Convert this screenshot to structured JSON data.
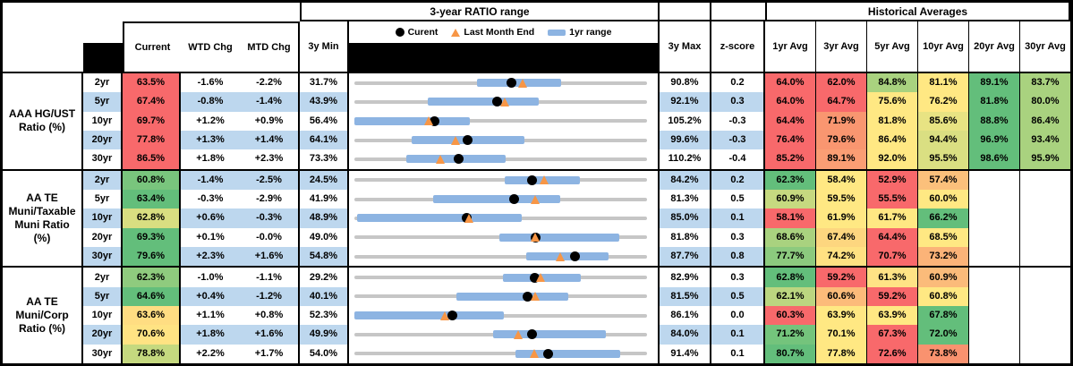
{
  "header": {
    "chart_section_title": "3-year RATIO range",
    "historical_section_title": "Historical Averages",
    "col_current": "Current",
    "col_wtd": "WTD Chg",
    "col_mtd": "MTD Chg",
    "col_3y_min": "3y Min",
    "col_3y_max": "3y Max",
    "col_zscore": "z-score",
    "avg_cols": [
      "1yr Avg",
      "3yr Avg",
      "5yr Avg",
      "10yr Avg",
      "20yr Avg",
      "30yr Avg"
    ],
    "legend": {
      "current": "Curent",
      "last_month": "Last Month End",
      "range": "1yr range"
    }
  },
  "colors": {
    "stripe_blue": "#BDD7EE",
    "bar_blue": "#8DB4E2",
    "track_gray": "#C6C6C6",
    "triangle_orange": "#F79646",
    "dot_black": "#000000",
    "heat_red": "#F8696B",
    "heat_yellow": "#FFE883",
    "heat_green": "#63BE7B"
  },
  "groups": [
    {
      "label": "AAA HG/UST\nRatio (%)",
      "rows": [
        {
          "tenor": "2yr",
          "current": "63.5%",
          "current_color": "#F8696B",
          "wtd": "-1.6%",
          "mtd": "-2.2%",
          "min": "31.7%",
          "max": "90.8%",
          "zscore": "0.2",
          "avgs": [
            {
              "v": "64.0%",
              "c": "#F8696B"
            },
            {
              "v": "62.0%",
              "c": "#F8696B"
            },
            {
              "v": "84.8%",
              "c": "#A9D27F"
            },
            {
              "v": "81.1%",
              "c": "#FFE883"
            },
            {
              "v": "89.1%",
              "c": "#63BE7B"
            },
            {
              "v": "83.7%",
              "c": "#A9D27F"
            }
          ]
        },
        {
          "tenor": "5yr",
          "current": "67.4%",
          "current_color": "#F8696B",
          "wtd": "-0.8%",
          "mtd": "-1.4%",
          "min": "43.9%",
          "max": "92.1%",
          "zscore": "0.3",
          "avgs": [
            {
              "v": "64.0%",
              "c": "#F8696B"
            },
            {
              "v": "64.7%",
              "c": "#F8696B"
            },
            {
              "v": "75.6%",
              "c": "#FFE883"
            },
            {
              "v": "76.2%",
              "c": "#FFE883"
            },
            {
              "v": "81.8%",
              "c": "#63BE7B"
            },
            {
              "v": "80.0%",
              "c": "#A9D27F"
            }
          ]
        },
        {
          "tenor": "10yr",
          "current": "69.7%",
          "current_color": "#F8696B",
          "wtd": "+1.2%",
          "mtd": "+0.9%",
          "min": "56.4%",
          "max": "105.2%",
          "zscore": "-0.3",
          "avgs": [
            {
              "v": "64.4%",
              "c": "#F8696B"
            },
            {
              "v": "71.9%",
              "c": "#F99670"
            },
            {
              "v": "81.8%",
              "c": "#FFE883"
            },
            {
              "v": "85.6%",
              "c": "#E8E383"
            },
            {
              "v": "88.8%",
              "c": "#63BE7B"
            },
            {
              "v": "86.4%",
              "c": "#A9D27F"
            }
          ]
        },
        {
          "tenor": "20yr",
          "current": "77.8%",
          "current_color": "#F8696B",
          "wtd": "+1.3%",
          "mtd": "+1.4%",
          "min": "64.1%",
          "max": "99.6%",
          "zscore": "-0.3",
          "avgs": [
            {
              "v": "76.4%",
              "c": "#F8696B"
            },
            {
              "v": "79.6%",
              "c": "#F99670"
            },
            {
              "v": "86.4%",
              "c": "#FFE883"
            },
            {
              "v": "94.4%",
              "c": "#DADF82"
            },
            {
              "v": "96.9%",
              "c": "#63BE7B"
            },
            {
              "v": "93.4%",
              "c": "#A9D27F"
            }
          ]
        },
        {
          "tenor": "30yr",
          "current": "86.5%",
          "current_color": "#F8696B",
          "wtd": "+1.8%",
          "mtd": "+2.3%",
          "min": "73.3%",
          "max": "110.2%",
          "zscore": "-0.4",
          "avgs": [
            {
              "v": "85.2%",
              "c": "#F8696B"
            },
            {
              "v": "89.1%",
              "c": "#FA9E74"
            },
            {
              "v": "92.0%",
              "c": "#FFE883"
            },
            {
              "v": "95.5%",
              "c": "#DADF82"
            },
            {
              "v": "98.6%",
              "c": "#63BE7B"
            },
            {
              "v": "95.9%",
              "c": "#A9D27F"
            }
          ]
        }
      ]
    },
    {
      "label": "AA TE\nMuni/Taxable\nMuni Ratio\n(%)",
      "rows": [
        {
          "tenor": "2yr",
          "current": "60.8%",
          "current_color": "#79C57D",
          "wtd": "-1.4%",
          "mtd": "-2.5%",
          "min": "24.5%",
          "max": "84.2%",
          "zscore": "0.2",
          "avgs": [
            {
              "v": "62.3%",
              "c": "#63BE7B"
            },
            {
              "v": "58.4%",
              "c": "#FFE883"
            },
            {
              "v": "52.9%",
              "c": "#F8696B"
            },
            {
              "v": "57.4%",
              "c": "#FBC07B"
            },
            {
              "v": "",
              "c": ""
            },
            {
              "v": "",
              "c": ""
            }
          ]
        },
        {
          "tenor": "5yr",
          "current": "63.4%",
          "current_color": "#63BE7B",
          "wtd": "-0.3%",
          "mtd": "-2.9%",
          "min": "41.9%",
          "max": "81.3%",
          "zscore": "0.5",
          "avgs": [
            {
              "v": "60.9%",
              "c": "#C6D980"
            },
            {
              "v": "59.5%",
              "c": "#FFE883"
            },
            {
              "v": "55.5%",
              "c": "#F8696B"
            },
            {
              "v": "60.0%",
              "c": "#FFE883"
            },
            {
              "v": "",
              "c": ""
            },
            {
              "v": "",
              "c": ""
            }
          ]
        },
        {
          "tenor": "10yr",
          "current": "62.8%",
          "current_color": "#D9DE81",
          "wtd": "+0.6%",
          "mtd": "-0.3%",
          "min": "48.9%",
          "max": "85.0%",
          "zscore": "0.1",
          "avgs": [
            {
              "v": "58.1%",
              "c": "#F8696B"
            },
            {
              "v": "61.9%",
              "c": "#FFE883"
            },
            {
              "v": "61.7%",
              "c": "#FFE883"
            },
            {
              "v": "66.2%",
              "c": "#63BE7B"
            },
            {
              "v": "",
              "c": ""
            },
            {
              "v": "",
              "c": ""
            }
          ]
        },
        {
          "tenor": "20yr",
          "current": "69.3%",
          "current_color": "#63BE7B",
          "wtd": "+0.1%",
          "mtd": "-0.0%",
          "min": "49.0%",
          "max": "81.8%",
          "zscore": "0.3",
          "avgs": [
            {
              "v": "68.6%",
              "c": "#A9D27F"
            },
            {
              "v": "67.4%",
              "c": "#FDD67F"
            },
            {
              "v": "64.4%",
              "c": "#F8696B"
            },
            {
              "v": "68.5%",
              "c": "#FFE883"
            },
            {
              "v": "",
              "c": ""
            },
            {
              "v": "",
              "c": ""
            }
          ]
        },
        {
          "tenor": "30yr",
          "current": "79.6%",
          "current_color": "#63BE7B",
          "wtd": "+2.3%",
          "mtd": "+1.6%",
          "min": "54.8%",
          "max": "87.7%",
          "zscore": "0.8",
          "avgs": [
            {
              "v": "77.7%",
              "c": "#8CCA7E"
            },
            {
              "v": "74.2%",
              "c": "#FFE182"
            },
            {
              "v": "70.7%",
              "c": "#F8696B"
            },
            {
              "v": "73.2%",
              "c": "#FBB378"
            },
            {
              "v": "",
              "c": ""
            },
            {
              "v": "",
              "c": ""
            }
          ]
        }
      ]
    },
    {
      "label": "AA TE\nMuni/Corp\nRatio (%)",
      "rows": [
        {
          "tenor": "2yr",
          "current": "62.3%",
          "current_color": "#8FCB7E",
          "wtd": "-1.0%",
          "mtd": "-1.1%",
          "min": "29.2%",
          "max": "82.9%",
          "zscore": "0.3",
          "avgs": [
            {
              "v": "62.8%",
              "c": "#63BE7B"
            },
            {
              "v": "59.2%",
              "c": "#F8696B"
            },
            {
              "v": "61.3%",
              "c": "#FFE385"
            },
            {
              "v": "60.9%",
              "c": "#FBBB7A"
            },
            {
              "v": "",
              "c": ""
            },
            {
              "v": "",
              "c": ""
            }
          ]
        },
        {
          "tenor": "5yr",
          "current": "64.6%",
          "current_color": "#63BE7B",
          "wtd": "+0.4%",
          "mtd": "-1.2%",
          "min": "40.1%",
          "max": "81.5%",
          "zscore": "0.5",
          "avgs": [
            {
              "v": "62.1%",
              "c": "#BBD680"
            },
            {
              "v": "60.6%",
              "c": "#FCBB7A"
            },
            {
              "v": "59.2%",
              "c": "#F8696B"
            },
            {
              "v": "60.8%",
              "c": "#FFE883"
            },
            {
              "v": "",
              "c": ""
            },
            {
              "v": "",
              "c": ""
            }
          ]
        },
        {
          "tenor": "10yr",
          "current": "63.6%",
          "current_color": "#FFDD82",
          "wtd": "+1.1%",
          "mtd": "+0.8%",
          "min": "52.3%",
          "max": "86.1%",
          "zscore": "0.0",
          "avgs": [
            {
              "v": "60.3%",
              "c": "#F8696B"
            },
            {
              "v": "63.9%",
              "c": "#FFE883"
            },
            {
              "v": "63.9%",
              "c": "#FFE883"
            },
            {
              "v": "67.8%",
              "c": "#63BE7B"
            },
            {
              "v": "",
              "c": ""
            },
            {
              "v": "",
              "c": ""
            }
          ]
        },
        {
          "tenor": "20yr",
          "current": "70.6%",
          "current_color": "#FFE383",
          "wtd": "+1.8%",
          "mtd": "+1.6%",
          "min": "49.9%",
          "max": "84.0%",
          "zscore": "0.1",
          "avgs": [
            {
              "v": "71.2%",
              "c": "#74C47C"
            },
            {
              "v": "70.1%",
              "c": "#FFE883"
            },
            {
              "v": "67.3%",
              "c": "#F8696B"
            },
            {
              "v": "72.0%",
              "c": "#63BE7B"
            },
            {
              "v": "",
              "c": ""
            },
            {
              "v": "",
              "c": ""
            }
          ]
        },
        {
          "tenor": "30yr",
          "current": "78.8%",
          "current_color": "#C5D97F",
          "wtd": "+2.2%",
          "mtd": "+1.7%",
          "min": "54.0%",
          "max": "91.4%",
          "zscore": "0.1",
          "avgs": [
            {
              "v": "80.7%",
              "c": "#63BE7B"
            },
            {
              "v": "77.8%",
              "c": "#FFE883"
            },
            {
              "v": "72.6%",
              "c": "#F8696B"
            },
            {
              "v": "73.8%",
              "c": "#F9926F"
            },
            {
              "v": "",
              "c": ""
            },
            {
              "v": "",
              "c": ""
            }
          ]
        }
      ]
    }
  ],
  "chart_data": {
    "type": "range-dot-plot",
    "title": "3-year RATIO range",
    "x_unit": "percent ratio",
    "legend": [
      "Current",
      "Last Month End",
      "1yr range"
    ],
    "groups": [
      {
        "name": "AAA HG/UST Ratio (%)",
        "rows": [
          {
            "label": "2yr",
            "min_3y": 31.7,
            "max_3y": 90.8,
            "current": 63.5,
            "last_month_end": 65.7,
            "range_1yr": [
              56.4,
              73.5
            ]
          },
          {
            "label": "5yr",
            "min_3y": 43.9,
            "max_3y": 92.1,
            "current": 67.4,
            "last_month_end": 68.8,
            "range_1yr": [
              56.0,
              74.3
            ]
          },
          {
            "label": "10yr",
            "min_3y": 56.4,
            "max_3y": 105.2,
            "current": 69.7,
            "last_month_end": 68.8,
            "range_1yr": [
              56.4,
              75.6
            ]
          },
          {
            "label": "20yr",
            "min_3y": 64.1,
            "max_3y": 99.6,
            "current": 77.8,
            "last_month_end": 76.4,
            "range_1yr": [
              71.1,
              84.7
            ]
          },
          {
            "label": "30yr",
            "min_3y": 73.3,
            "max_3y": 110.2,
            "current": 86.5,
            "last_month_end": 84.2,
            "range_1yr": [
              79.9,
              92.4
            ]
          }
        ]
      },
      {
        "name": "AA TE Muni/Taxable Muni Ratio (%)",
        "rows": [
          {
            "label": "2yr",
            "min_3y": 24.5,
            "max_3y": 84.2,
            "current": 60.8,
            "last_month_end": 63.3,
            "range_1yr": [
              55.2,
              70.6
            ]
          },
          {
            "label": "5yr",
            "min_3y": 41.9,
            "max_3y": 81.3,
            "current": 63.4,
            "last_month_end": 66.3,
            "range_1yr": [
              52.5,
              69.6
            ]
          },
          {
            "label": "10yr",
            "min_3y": 48.9,
            "max_3y": 85.0,
            "current": 62.8,
            "last_month_end": 63.1,
            "range_1yr": [
              49.2,
              69.5
            ]
          },
          {
            "label": "20yr",
            "min_3y": 49.0,
            "max_3y": 81.8,
            "current": 69.3,
            "last_month_end": 69.3,
            "range_1yr": [
              65.2,
              78.7
            ]
          },
          {
            "label": "30yr",
            "min_3y": 54.8,
            "max_3y": 87.7,
            "current": 79.6,
            "last_month_end": 78.0,
            "range_1yr": [
              74.1,
              83.4
            ]
          }
        ]
      },
      {
        "name": "AA TE Muni/Corp Ratio (%)",
        "rows": [
          {
            "label": "2yr",
            "min_3y": 29.2,
            "max_3y": 82.9,
            "current": 62.3,
            "last_month_end": 63.4,
            "range_1yr": [
              56.5,
              70.7
            ]
          },
          {
            "label": "5yr",
            "min_3y": 40.1,
            "max_3y": 81.5,
            "current": 64.6,
            "last_month_end": 65.8,
            "range_1yr": [
              54.5,
              70.4
            ]
          },
          {
            "label": "10yr",
            "min_3y": 52.3,
            "max_3y": 86.1,
            "current": 63.6,
            "last_month_end": 62.8,
            "range_1yr": [
              52.3,
              69.6
            ]
          },
          {
            "label": "20yr",
            "min_3y": 49.9,
            "max_3y": 84.0,
            "current": 70.6,
            "last_month_end": 69.0,
            "range_1yr": [
              66.1,
              79.2
            ]
          },
          {
            "label": "30yr",
            "min_3y": 54.0,
            "max_3y": 91.4,
            "current": 78.8,
            "last_month_end": 77.1,
            "range_1yr": [
              74.6,
              88.0
            ]
          }
        ]
      }
    ]
  }
}
